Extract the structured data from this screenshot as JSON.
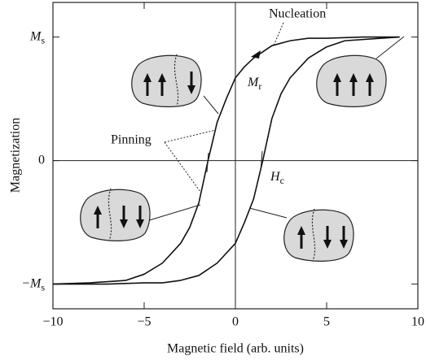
{
  "chart_data": {
    "type": "line",
    "x_label": "Magnetic field (arb. units)",
    "y_label": "Magnetization",
    "xlim": [
      -10,
      10
    ],
    "ylim": [
      -1.2,
      1.28
    ],
    "xticks": [
      {
        "value": -10,
        "label": "−10"
      },
      {
        "value": -5,
        "label": "−5"
      },
      0,
      5,
      10
    ],
    "yticks": [
      {
        "value": -1,
        "label": "−Ms"
      },
      0,
      {
        "value": 1,
        "label": "Ms"
      }
    ],
    "annotations": [
      "Nucleation",
      "Pinning",
      "Mr",
      "Hc"
    ],
    "series": [
      {
        "color": "#111111",
        "x": [
          -10,
          -8,
          -6,
          -5,
          -4,
          -3,
          -2.5,
          -2,
          -1.5,
          -1,
          -0.5,
          0,
          0.5,
          1,
          2,
          3,
          4,
          5,
          7,
          9
        ],
        "values": [
          -1,
          -0.99,
          -0.97,
          -0.92,
          -0.83,
          -0.67,
          -0.54,
          -0.34,
          0,
          0.31,
          0.5,
          0.67,
          0.76,
          0.83,
          0.93,
          0.97,
          0.99,
          0.99,
          1,
          1
        ]
      },
      {
        "color": "#111111",
        "x": [
          -10,
          -7,
          -5,
          -4,
          -3,
          -2,
          -1,
          0,
          0.5,
          1,
          1.5,
          2,
          2.5,
          3,
          4,
          5,
          6,
          8,
          9
        ],
        "values": [
          -1,
          -1,
          -0.99,
          -0.99,
          -0.97,
          -0.93,
          -0.83,
          -0.67,
          -0.5,
          -0.31,
          0,
          0.34,
          0.54,
          0.67,
          0.83,
          0.92,
          0.97,
          0.99,
          1
        ]
      }
    ]
  }
}
